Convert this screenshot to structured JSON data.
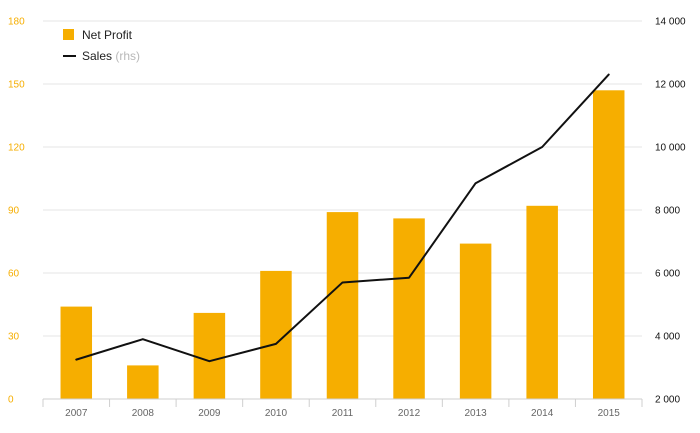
{
  "chart_data": {
    "type": "bar",
    "categories": [
      "2007",
      "2008",
      "2009",
      "2010",
      "2011",
      "2012",
      "2013",
      "2014",
      "2015"
    ],
    "series": [
      {
        "name": "Net Profit",
        "type": "bar",
        "axis": "left",
        "values": [
          44,
          16,
          41,
          61,
          89,
          86,
          74,
          92,
          147
        ]
      },
      {
        "name": "Sales",
        "type": "line",
        "axis": "right",
        "values": [
          3250,
          3900,
          3200,
          3750,
          5700,
          5850,
          8850,
          10000,
          12300
        ]
      }
    ],
    "left_axis": {
      "ticks": [
        0,
        30,
        60,
        90,
        120,
        150,
        180
      ],
      "tick_labels": [
        "0",
        "30",
        "60",
        "90",
        "120",
        "150",
        "180"
      ],
      "range": [
        0,
        180
      ]
    },
    "right_axis": {
      "ticks": [
        2000,
        4000,
        6000,
        8000,
        10000,
        12000,
        14000
      ],
      "tick_labels": [
        "2 000",
        "4 000",
        "6 000",
        "8 000",
        "10 000",
        "12 000",
        "14 000"
      ],
      "range": [
        2000,
        14000
      ]
    },
    "legend": {
      "placement": "top-left",
      "items": [
        {
          "label": "Net Profit",
          "suffix": ""
        },
        {
          "label": "Sales",
          "suffix": " (rhs)"
        }
      ]
    },
    "grid": true,
    "colors": {
      "bar": "#f6ae00",
      "line": "#111111",
      "grid": "#e6e6e6",
      "axis": "#cfcfcf",
      "left_ticks": "#f6ae00",
      "right_ticks": "#111111",
      "x_ticks": "#666666",
      "legend_rhs": "#b8b8b8"
    }
  }
}
